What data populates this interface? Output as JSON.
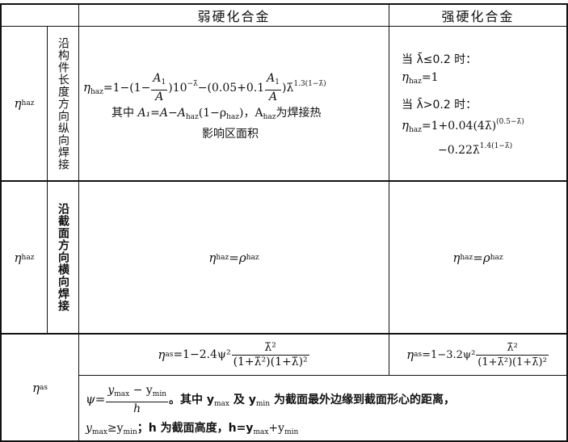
{
  "header": {
    "weak_alloy": "弱硬化合金",
    "strong_alloy": "强硬化合金"
  },
  "rows": {
    "row1": {
      "param_symbol": "η",
      "param_sub": "haz",
      "direction_label": "沿构件长度方向纵向焊接",
      "weak": {
        "formula_eta": "η",
        "formula_eta_sub": "haz",
        "formula_part1": "=1−",
        "frac_num": "A",
        "frac_num_sub": "1",
        "frac_den": "A",
        "formula_exp1": "−λ̄",
        "formula_part2": "−",
        "formula_coef": "0.05+0.1",
        "formula_exp2": "1.3(1−λ̄)",
        "note_prefix": "其中 ",
        "note_formula": "A₁=A−A",
        "note_sub1": "haz",
        "note_mid": "(1−ρ",
        "note_sub2": "haz",
        "note_close": ")，A",
        "note_sub3": "haz",
        "note_suffix": "为焊接热",
        "note_line2": "影响区面积"
      },
      "strong": {
        "cond1": "当 λ̄≤0.2 时：",
        "eq1_lhs": "η",
        "eq1_sub": "haz",
        "eq1_rhs": "=1",
        "cond2": "当 λ̄>0.2 时：",
        "eq2_lhs": "η",
        "eq2_sub": "haz",
        "eq2_rhs": "=1+0.04(4λ̄)",
        "eq2_exp": "(0.5−λ̄)",
        "eq2_line2": "−0.22λ̄",
        "eq2_exp2": "1.4(1−λ̄)"
      }
    },
    "row2": {
      "param_symbol": "η",
      "param_sub": "haz",
      "direction_label": "沿截面方向横向焊接",
      "weak": {
        "lhs": "η",
        "lhs_sub": "haz",
        "eq": "=",
        "rhs": "ρ",
        "rhs_sub": "haz"
      },
      "strong": {
        "lhs": "η",
        "lhs_sub": "haz",
        "eq": "=",
        "rhs": "ρ",
        "rhs_sub": "haz"
      }
    },
    "row3": {
      "param_symbol": "η",
      "param_sub": "as",
      "weak": {
        "lhs": "η",
        "lhs_sub": "as",
        "rhs": "=1−2.4ψ²",
        "frac_num": "λ̄²",
        "frac_den": "(1+λ̄²)(1+λ̄)²"
      },
      "strong": {
        "lhs": "η",
        "lhs_sub": "as",
        "rhs": "=1−3.2ψ²",
        "frac_num": "λ̄²",
        "frac_den": "(1+λ̄²)(1+λ̄)²"
      },
      "note": {
        "psi": "ψ=",
        "num": "y",
        "num_sub1": "max",
        "num_minus": " − y",
        "num_sub2": "min",
        "den": "h",
        "text1": "。其中 y",
        "sub_a": "max",
        "text2": " 及 y",
        "sub_b": "min",
        "text3": " 为截面最外边缘到截面形心的距离，",
        "line2_a": "y",
        "line2_sub1": "max",
        "line2_b": "≥y",
        "line2_sub2": "min",
        "line2_c": "；h 为截面高度，h=y",
        "line2_sub3": "max",
        "line2_d": "+y",
        "line2_sub4": "min"
      }
    }
  }
}
